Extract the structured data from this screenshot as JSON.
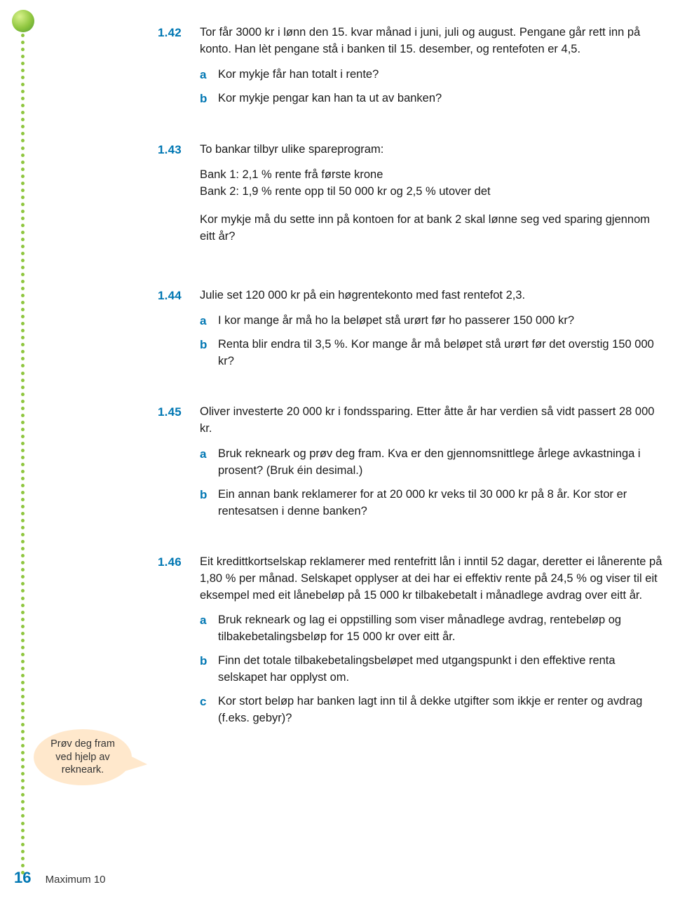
{
  "colors": {
    "accent": "#0077b3",
    "dot": "#8fc63f",
    "bubble": "#ffe8cc",
    "text": "#1a1a1a",
    "background": "#ffffff"
  },
  "speech": {
    "line1": "Prøv deg fram",
    "line2": "ved hjelp av",
    "line3": "rekneark."
  },
  "footer": {
    "page": "16",
    "book": "Maximum 10"
  },
  "ex": {
    "142": {
      "num": "1.42",
      "intro": "Tor får 3000 kr i lønn den 15. kvar månad i juni, juli og august. Pengane går rett inn på konto. Han lèt pengane stå i banken til 15. desember, og rentefoten er 4,5.",
      "a": "Kor mykje får han totalt i rente?",
      "b": "Kor mykje pengar kan han ta ut av banken?"
    },
    "143": {
      "num": "1.43",
      "intro": "To bankar tilbyr ulike spareprogram:",
      "line1": "Bank 1: 2,1 % rente frå første krone",
      "line2": "Bank 2: 1,9 % rente opp til 50 000 kr og 2,5 % utover det",
      "q": "Kor mykje må du sette inn på kontoen for at bank 2 skal lønne seg ved sparing gjennom eitt år?"
    },
    "144": {
      "num": "1.44",
      "intro": "Julie set 120 000 kr på ein høgrentekonto med fast rentefot 2,3.",
      "a": "I kor mange år må ho la beløpet stå urørt før ho passerer 150 000 kr?",
      "b": "Renta blir endra til 3,5 %. Kor mange år må beløpet stå urørt før det overstig 150 000 kr?"
    },
    "145": {
      "num": "1.45",
      "intro": "Oliver investerte 20 000 kr i fondssparing. Etter åtte år har verdien så vidt passert 28 000 kr.",
      "a": "Bruk rekneark og prøv deg fram. Kva er den gjennomsnittlege årlege avkastninga i prosent? (Bruk éin desimal.)",
      "b": "Ein annan bank reklamerer for at 20 000 kr veks til 30 000 kr på 8 år. Kor stor er rentesatsen i denne banken?"
    },
    "146": {
      "num": "1.46",
      "intro": "Eit kredittkortselskap reklamerer med rentefritt lån i inntil 52 dagar, deretter ei lånerente på 1,80 % per månad. Selskapet opplyser at dei har ei effektiv rente på 24,5 % og viser til eit eksempel med eit lånebeløp på 15 000 kr tilbakebetalt i månadlege avdrag over eitt år.",
      "a": "Bruk rekneark og lag ei oppstilling som viser månadlege avdrag, rentebeløp og tilbakebetalingsbeløp for 15 000 kr over eitt år.",
      "b": "Finn det totale tilbakebetalingsbeløpet med utgangspunkt i den effektive renta selskapet har opplyst om.",
      "c": "Kor stort beløp har banken lagt inn til å dekke utgifter som ikkje er renter og avdrag (f.eks. gebyr)?"
    }
  }
}
